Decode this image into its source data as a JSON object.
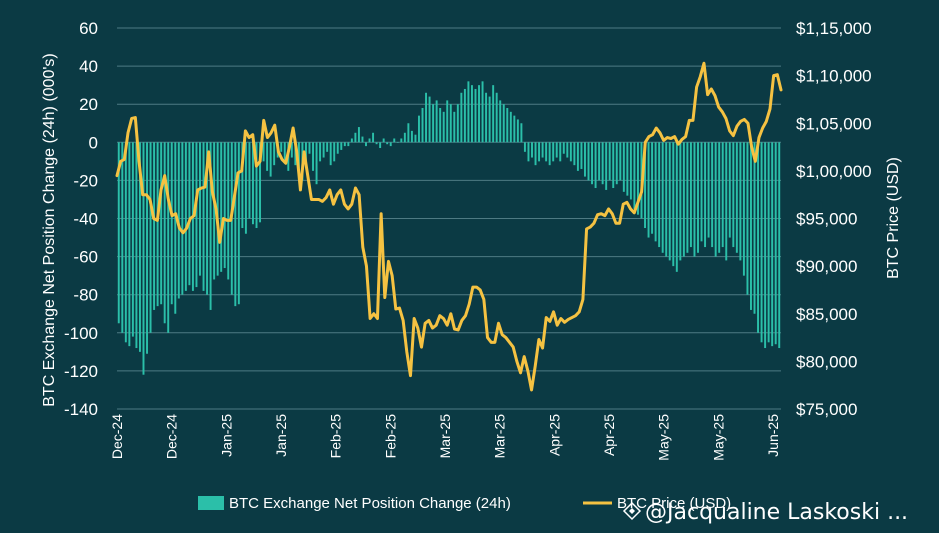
{
  "chart_data": {
    "type": "bar+line",
    "title": "",
    "colors": {
      "background": "#0b3a44",
      "bars": "#2bbfa9",
      "line": "#f5c242",
      "grid": "#4e7a83",
      "text": "#ffffff"
    },
    "left_axis": {
      "label": "BTC Exchange Net Position Change (24h) (000's)",
      "ylim": [
        -140,
        60
      ],
      "ticks": [
        60,
        40,
        20,
        0,
        -20,
        -40,
        -60,
        -80,
        -100,
        -120,
        -140
      ],
      "tick_labels": [
        "60",
        "40",
        "20",
        "0",
        "-20",
        "-40",
        "-60",
        "-80",
        "-100",
        "-120",
        "-140"
      ]
    },
    "right_axis": {
      "label": "BTC Price (USD)",
      "ylim": [
        75000,
        115000
      ],
      "ticks": [
        115000,
        110000,
        105000,
        100000,
        95000,
        90000,
        85000,
        80000,
        75000
      ],
      "tick_labels": [
        "$1,15,000",
        "$1,10,000",
        "$1,05,000",
        "$1,00,000",
        "$95,000",
        "$90,000",
        "$85,000",
        "$80,000",
        "$75,000"
      ]
    },
    "x_tick_labels": [
      "Dec-24",
      "Dec-24",
      "Jan-25",
      "Jan-25",
      "Feb-25",
      "Feb-25",
      "Mar-25",
      "Mar-25",
      "Apr-25",
      "Apr-25",
      "May-25",
      "May-25",
      "Jun-25"
    ],
    "series": [
      {
        "name": "BTC Exchange Net Position Change (24h)",
        "kind": "bar",
        "axis": "left",
        "values": [
          -95,
          -100,
          -105,
          -107,
          -102,
          -108,
          -110,
          -122,
          -111,
          -100,
          -88,
          -86,
          -85,
          -95,
          -100,
          -85,
          -90,
          -82,
          -80,
          -78,
          -75,
          -78,
          -76,
          -70,
          -78,
          -80,
          -88,
          -72,
          -70,
          -68,
          -66,
          -72,
          -80,
          -86,
          -85,
          -45,
          -48,
          -40,
          -43,
          -45,
          -42,
          -10,
          -15,
          -18,
          -12,
          -8,
          -5,
          -10,
          -15,
          -8,
          -12,
          -18,
          -20,
          -10,
          -6,
          -15,
          -22,
          -10,
          -8,
          -5,
          -12,
          -10,
          -6,
          -4,
          -2,
          -2,
          2,
          5,
          8,
          3,
          -2,
          2,
          5,
          -1,
          -3,
          2,
          -1,
          -2,
          2,
          0,
          2,
          5,
          10,
          6,
          4,
          14,
          18,
          26,
          24,
          20,
          22,
          18,
          16,
          22,
          20,
          16,
          20,
          26,
          28,
          32,
          30,
          28,
          30,
          32,
          26,
          24,
          30,
          26,
          22,
          20,
          18,
          16,
          14,
          12,
          10,
          -5,
          -10,
          -8,
          -12,
          -10,
          -8,
          -10,
          -12,
          -10,
          -8,
          -10,
          -6,
          -8,
          -10,
          -12,
          -15,
          -14,
          -18,
          -20,
          -22,
          -24,
          -20,
          -22,
          -25,
          -20,
          -24,
          -22,
          -20,
          -26,
          -28,
          -30,
          -35,
          -38,
          -40,
          -45,
          -50,
          -48,
          -52,
          -55,
          -58,
          -60,
          -62,
          -65,
          -68,
          -62,
          -60,
          -58,
          -55,
          -60,
          -58,
          -52,
          -55,
          -50,
          -55,
          -60,
          -58,
          -55,
          -62,
          -50,
          -55,
          -58,
          -62,
          -70,
          -80,
          -88,
          -90,
          -100,
          -105,
          -108,
          -105,
          -107,
          -106,
          -108
        ]
      },
      {
        "name": "BTC Price (USD)",
        "kind": "line",
        "axis": "right",
        "values": [
          99500,
          101000,
          101200,
          104000,
          105500,
          105600,
          101000,
          97500,
          97500,
          97000,
          95000,
          94800,
          98000,
          99500,
          97000,
          95300,
          95500,
          94000,
          93500,
          94000,
          95000,
          95300,
          98000,
          98200,
          98300,
          102000,
          97800,
          96000,
          92500,
          95000,
          94800,
          94800,
          97300,
          99800,
          100000,
          104200,
          103500,
          103800,
          100500,
          101000,
          105300,
          103500,
          104000,
          104800,
          102000,
          101200,
          100800,
          102500,
          104500,
          102000,
          98000,
          102000,
          99500,
          97000,
          97000,
          97000,
          96800,
          97200,
          98000,
          96500,
          97500,
          98000,
          96500,
          96000,
          96500,
          98200,
          97500,
          92000,
          90000,
          84500,
          85000,
          84500,
          95500,
          86700,
          90500,
          89000,
          85500,
          85600,
          84300,
          81000,
          78500,
          84500,
          83500,
          81500,
          84000,
          84300,
          83500,
          83800,
          84800,
          84500,
          83800,
          85000,
          83400,
          83300,
          84300,
          84800,
          86000,
          87800,
          87800,
          87500,
          86500,
          82500,
          82000,
          82000,
          84000,
          82800,
          82500,
          82000,
          81500,
          80000,
          78800,
          80500,
          79000,
          77000,
          79500,
          82300,
          81400,
          84600,
          84200,
          85200,
          83800,
          84500,
          84100,
          84400,
          84600,
          84800,
          85200,
          86500,
          93900,
          94100,
          94500,
          95400,
          95500,
          95300,
          96000,
          95500,
          94500,
          94500,
          96500,
          96700,
          96000,
          95600,
          96700,
          97800,
          103000,
          103600,
          103800,
          104500,
          104000,
          103200,
          103500,
          103400,
          103600,
          102800,
          103300,
          103600,
          105300,
          105300,
          108800,
          109900,
          111300,
          108000,
          108600,
          107900,
          106700,
          106200,
          105500,
          104200,
          103700,
          104700,
          105200,
          105400,
          105000,
          102500,
          101000,
          103500,
          104500,
          105200,
          106500,
          110000,
          110100,
          108500
        ]
      }
    ]
  },
  "legend": {
    "bar_label": "BTC Exchange Net Position Change (24h)",
    "line_label": "BTC Price (USD)"
  },
  "watermark": {
    "text": "@Jacqualine Laskoski ..."
  }
}
